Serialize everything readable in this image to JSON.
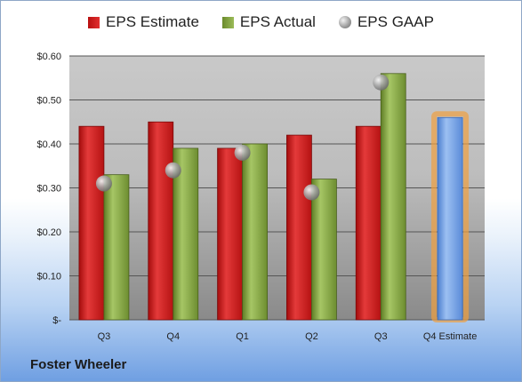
{
  "company": "Foster Wheeler",
  "legend": {
    "estimate": "EPS Estimate",
    "actual": "EPS Actual",
    "gaap": "EPS GAAP"
  },
  "chart_data": {
    "type": "bar",
    "categories": [
      "Q3",
      "Q4",
      "Q1",
      "Q2",
      "Q3",
      "Q4 Estimate"
    ],
    "series": [
      {
        "name": "EPS Estimate",
        "color": "#c81e1e",
        "values": [
          0.44,
          0.45,
          0.39,
          0.42,
          0.44,
          null
        ]
      },
      {
        "name": "EPS Actual",
        "color": "#8aab45",
        "values": [
          0.33,
          0.39,
          0.4,
          0.32,
          0.56,
          null
        ]
      },
      {
        "name": "EPS GAAP",
        "color": "#9a9a9a",
        "values": [
          0.31,
          0.34,
          0.38,
          0.29,
          0.54,
          null
        ]
      }
    ],
    "estimate_bar": {
      "category": "Q4 Estimate",
      "value": 0.46,
      "color": "#6f9be0",
      "glow": "#f0a040"
    },
    "ylim": [
      0,
      0.6
    ],
    "yticks": [
      0,
      0.1,
      0.2,
      0.3,
      0.4,
      0.5,
      0.6
    ],
    "ytick_labels": [
      "$-",
      "$0.10",
      "$0.20",
      "$0.30",
      "$0.40",
      "$0.50",
      "$0.60"
    ],
    "grid": true,
    "legend_position": "top"
  }
}
